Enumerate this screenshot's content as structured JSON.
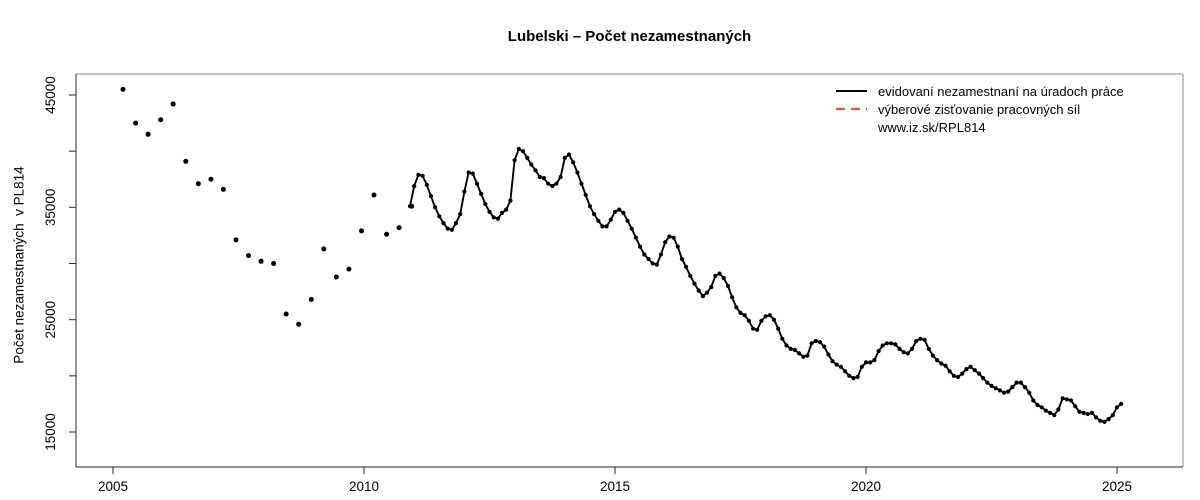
{
  "title": "Lubelski – Počet nezamestnaných",
  "legend": {
    "items": [
      {
        "label": "evidovaní nezamestnaní na úradoch práce",
        "style": "solid",
        "color": "#000000"
      },
      {
        "label": "výberové zisťovanie pracovných síl",
        "style": "dashed",
        "color": "#f04c4c"
      },
      {
        "label": "www.iz.sk/RPL814",
        "style": "none",
        "color": ""
      }
    ]
  },
  "chart_data": {
    "type": "line",
    "title": "Lubelski – Počet nezamestnaných",
    "xlabel": "",
    "ylabel": "Počet nezamestnaných  v PL814",
    "x_ticks": [
      2005,
      2010,
      2015,
      2020,
      2025
    ],
    "y_ticks_all": [
      15000,
      20000,
      25000,
      30000,
      35000,
      40000,
      45000
    ],
    "y_ticks_labeled": [
      15000,
      25000,
      35000,
      45000
    ],
    "xlim": [
      2004.26,
      2026.31
    ],
    "ylim": [
      11900,
      46900
    ],
    "grid": false,
    "legend_position": "top-right",
    "series": [
      {
        "name": "evidovaní nezamestnaní na úradoch práce (štvrťročné body 2005–2010)",
        "type": "points",
        "color": "#000000",
        "x_start": 2005.2,
        "x_step": 0.25,
        "values": [
          45500,
          42500,
          41500,
          42800,
          44200,
          39100,
          37100,
          37500,
          36600,
          32100,
          30700,
          30200,
          30000,
          25500,
          24600,
          26800,
          31300,
          28800,
          29500,
          32900,
          36100,
          32600,
          33200,
          35100
        ]
      },
      {
        "name": "evidovaní nezamestnaní na úradoch práce (mesačne 12/2010–02/2025)",
        "type": "line+points",
        "color": "#000000",
        "x_start": 2010.9167,
        "x_step": 0.0833333,
        "values": [
          35100,
          36900,
          37900,
          37800,
          37000,
          36000,
          35000,
          34200,
          33600,
          33100,
          33000,
          33600,
          34400,
          36400,
          38100,
          38000,
          37100,
          36200,
          35300,
          34600,
          34100,
          34000,
          34500,
          34800,
          35600,
          39200,
          40200,
          40000,
          39400,
          38800,
          38300,
          37700,
          37600,
          37100,
          36900,
          37100,
          37700,
          39400,
          39700,
          39000,
          38100,
          37100,
          36100,
          35100,
          34400,
          33800,
          33300,
          33300,
          33900,
          34600,
          34800,
          34500,
          33800,
          33100,
          32300,
          31500,
          30800,
          30400,
          30000,
          29900,
          30800,
          31900,
          32400,
          32300,
          31500,
          30400,
          29700,
          28900,
          28200,
          27600,
          27100,
          27400,
          27900,
          28900,
          29100,
          28700,
          28000,
          27000,
          26100,
          25600,
          25400,
          24900,
          24200,
          24100,
          24900,
          25300,
          25400,
          25000,
          24200,
          23300,
          22700,
          22400,
          22300,
          22000,
          21700,
          21800,
          22900,
          23100,
          23000,
          22600,
          21900,
          21300,
          21000,
          20800,
          20400,
          20000,
          19800,
          19900,
          20800,
          21200,
          21200,
          21400,
          22200,
          22700,
          22900,
          22900,
          22800,
          22400,
          22100,
          22000,
          22400,
          23100,
          23300,
          23200,
          22400,
          21800,
          21400,
          21100,
          20900,
          20400,
          20000,
          19900,
          20200,
          20600,
          20800,
          20500,
          20200,
          19800,
          19400,
          19100,
          18900,
          18700,
          18500,
          18600,
          19000,
          19400,
          19400,
          19000,
          18500,
          17800,
          17400,
          17200,
          16900,
          16700,
          16500,
          17000,
          18000,
          17900,
          17800,
          17300,
          16800,
          16700,
          16600,
          16700,
          16300,
          16000,
          15900,
          16150,
          16500,
          17200,
          17500
        ]
      },
      {
        "name": "výberové zisťovanie pracovných síl",
        "type": "dashed-line",
        "color": "#f04c4c",
        "values": []
      }
    ]
  }
}
